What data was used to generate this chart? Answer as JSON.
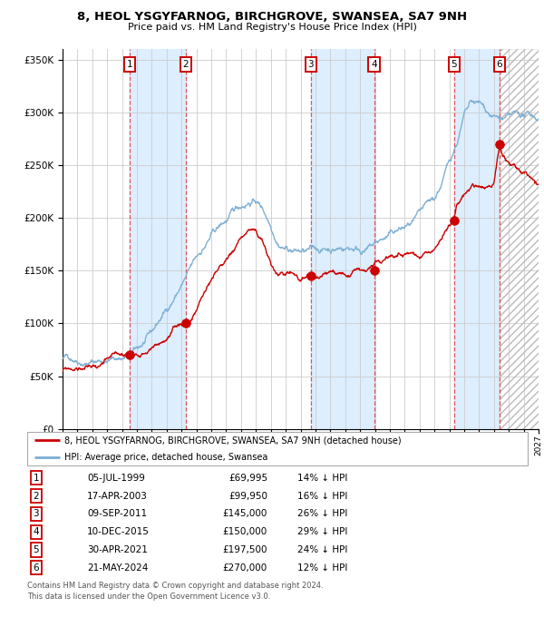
{
  "title": "8, HEOL YSGYFARNOG, BIRCHGROVE, SWANSEA, SA7 9NH",
  "subtitle": "Price paid vs. HM Land Registry's House Price Index (HPI)",
  "sales": [
    {
      "num": 1,
      "date": "05-JUL-1999",
      "year": 1999.5,
      "price": 69995,
      "pct": "14% ↓ HPI"
    },
    {
      "num": 2,
      "date": "17-APR-2003",
      "year": 2003.29,
      "price": 99950,
      "pct": "16% ↓ HPI"
    },
    {
      "num": 3,
      "date": "09-SEP-2011",
      "year": 2011.69,
      "price": 145000,
      "pct": "26% ↓ HPI"
    },
    {
      "num": 4,
      "date": "10-DEC-2015",
      "year": 2015.94,
      "price": 150000,
      "pct": "29% ↓ HPI"
    },
    {
      "num": 5,
      "date": "30-APR-2021",
      "year": 2021.33,
      "price": 197500,
      "pct": "24% ↓ HPI"
    },
    {
      "num": 6,
      "date": "21-MAY-2024",
      "year": 2024.38,
      "price": 270000,
      "pct": "12% ↓ HPI"
    }
  ],
  "legend_property": "8, HEOL YSGYFARNOG, BIRCHGROVE, SWANSEA, SA7 9NH (detached house)",
  "legend_hpi": "HPI: Average price, detached house, Swansea",
  "footer1": "Contains HM Land Registry data © Crown copyright and database right 2024.",
  "footer2": "This data is licensed under the Open Government Licence v3.0.",
  "hpi_color": "#7aadd4",
  "property_color": "#cc0000",
  "background_color": "#ffffff",
  "shade_color": "#ddeeff",
  "xlim": [
    1995,
    2027
  ],
  "ylim": [
    0,
    360000
  ],
  "yticks": [
    0,
    50000,
    100000,
    150000,
    200000,
    250000,
    300000,
    350000
  ]
}
